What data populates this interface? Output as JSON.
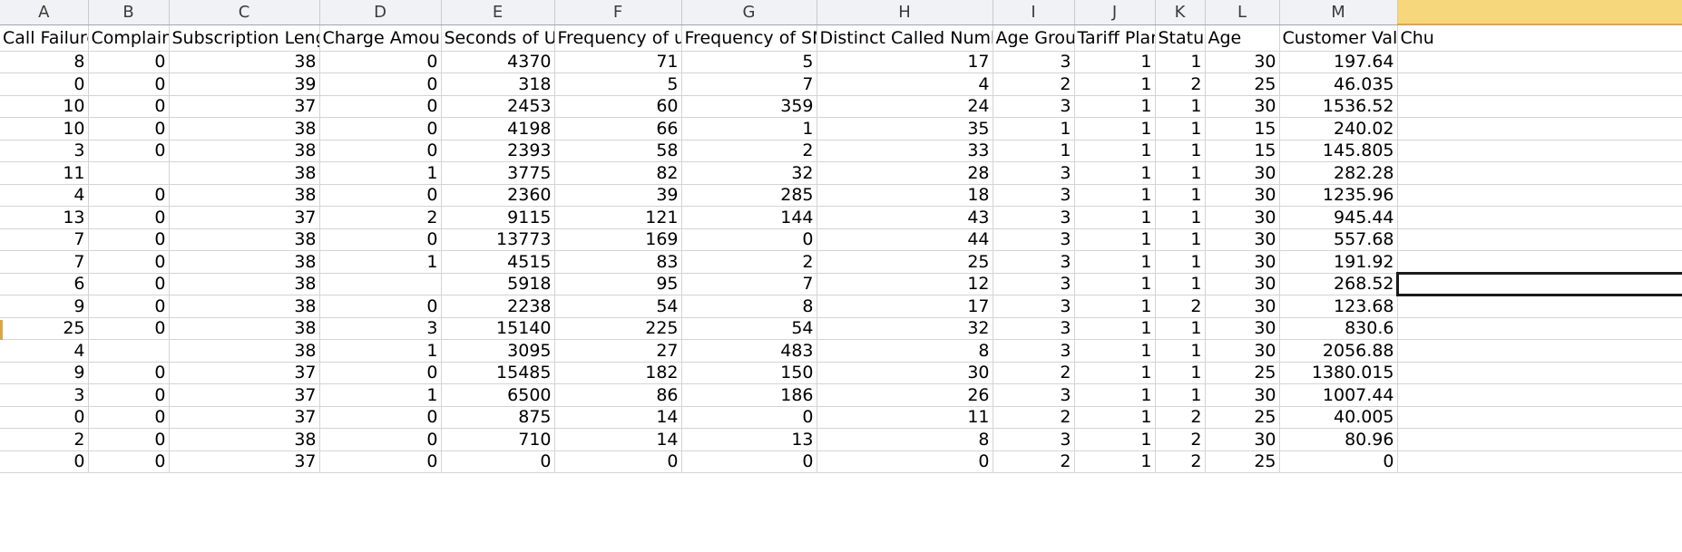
{
  "sheet": {
    "column_letters": [
      "A",
      "B",
      "C",
      "D",
      "E",
      "F",
      "G",
      "H",
      "I",
      "J",
      "K",
      "L",
      "M",
      ""
    ],
    "headers": [
      "Call  Failure",
      "Complains",
      "Subscription  Length",
      "Charge  Amount",
      "Seconds of Use",
      "Frequency of use",
      "Frequency of SMS",
      "Distinct Called Numbers",
      "Age Group",
      "Tariff Plan",
      "Status",
      "Age",
      "Customer Value",
      "Chu"
    ],
    "rows": [
      [
        "8",
        "0",
        "38",
        "0",
        "4370",
        "71",
        "5",
        "17",
        "3",
        "1",
        "1",
        "30",
        "197.64",
        ""
      ],
      [
        "0",
        "0",
        "39",
        "0",
        "318",
        "5",
        "7",
        "4",
        "2",
        "1",
        "2",
        "25",
        "46.035",
        ""
      ],
      [
        "10",
        "0",
        "37",
        "0",
        "2453",
        "60",
        "359",
        "24",
        "3",
        "1",
        "1",
        "30",
        "1536.52",
        ""
      ],
      [
        "10",
        "0",
        "38",
        "0",
        "4198",
        "66",
        "1",
        "35",
        "1",
        "1",
        "1",
        "15",
        "240.02",
        ""
      ],
      [
        "3",
        "0",
        "38",
        "0",
        "2393",
        "58",
        "2",
        "33",
        "1",
        "1",
        "1",
        "15",
        "145.805",
        ""
      ],
      [
        "11",
        "",
        "38",
        "1",
        "3775",
        "82",
        "32",
        "28",
        "3",
        "1",
        "1",
        "30",
        "282.28",
        ""
      ],
      [
        "4",
        "0",
        "38",
        "0",
        "2360",
        "39",
        "285",
        "18",
        "3",
        "1",
        "1",
        "30",
        "1235.96",
        ""
      ],
      [
        "13",
        "0",
        "37",
        "2",
        "9115",
        "121",
        "144",
        "43",
        "3",
        "1",
        "1",
        "30",
        "945.44",
        ""
      ],
      [
        "7",
        "0",
        "38",
        "0",
        "13773",
        "169",
        "0",
        "44",
        "3",
        "1",
        "1",
        "30",
        "557.68",
        ""
      ],
      [
        "7",
        "0",
        "38",
        "1",
        "4515",
        "83",
        "2",
        "25",
        "3",
        "1",
        "1",
        "30",
        "191.92",
        ""
      ],
      [
        "6",
        "0",
        "38",
        "",
        "5918",
        "95",
        "7",
        "12",
        "3",
        "1",
        "1",
        "30",
        "268.52",
        ""
      ],
      [
        "9",
        "0",
        "38",
        "0",
        "2238",
        "54",
        "8",
        "17",
        "3",
        "1",
        "2",
        "30",
        "123.68",
        ""
      ],
      [
        "25",
        "0",
        "38",
        "3",
        "15140",
        "225",
        "54",
        "32",
        "3",
        "1",
        "1",
        "30",
        "830.6",
        ""
      ],
      [
        "4",
        "",
        "38",
        "1",
        "3095",
        "27",
        "483",
        "8",
        "3",
        "1",
        "1",
        "30",
        "2056.88",
        ""
      ],
      [
        "9",
        "0",
        "37",
        "0",
        "15485",
        "182",
        "150",
        "30",
        "2",
        "1",
        "1",
        "25",
        "1380.015",
        ""
      ],
      [
        "3",
        "0",
        "37",
        "1",
        "6500",
        "86",
        "186",
        "26",
        "3",
        "1",
        "1",
        "30",
        "1007.44",
        ""
      ],
      [
        "0",
        "0",
        "37",
        "0",
        "875",
        "14",
        "0",
        "11",
        "2",
        "1",
        "2",
        "25",
        "40.005",
        ""
      ],
      [
        "2",
        "0",
        "38",
        "0",
        "710",
        "14",
        "13",
        "8",
        "3",
        "1",
        "2",
        "30",
        "80.96",
        ""
      ],
      [
        "0",
        "0",
        "37",
        "0",
        "0",
        "0",
        "0",
        "0",
        "2",
        "1",
        "2",
        "25",
        "0",
        ""
      ]
    ],
    "selected_cell": {
      "row": 10,
      "col": 13
    },
    "colors": {
      "grid_line": "#d4d4d4",
      "column_header_bg": "#f0f2f5",
      "selected_column_header_bg": "#f6d77b",
      "selection_border": "#1a1a1a"
    }
  }
}
